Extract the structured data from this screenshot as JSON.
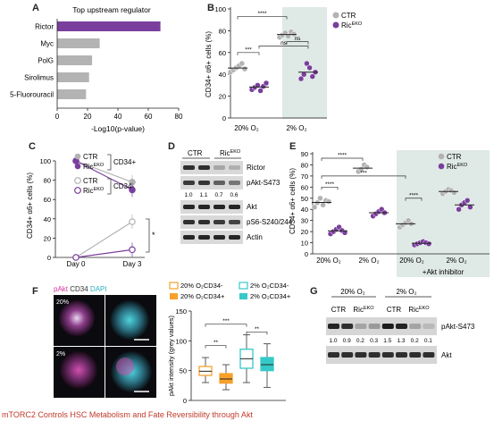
{
  "figure": {
    "caption": "mTORC2 Controls HSC Metabolism and Fate Reversibility through Akt",
    "colors": {
      "purple": "#7a3e9d",
      "grey": "#b3b3b3",
      "shade": "#dfe9e6",
      "orange": "#f7a12c",
      "teal": "#35c9c8"
    }
  },
  "panels": {
    "A": {
      "label": "A",
      "title": "Top upstream regulator",
      "xlabel": "-Log10(p-value)",
      "chart_data": {
        "type": "bar",
        "orientation": "horizontal",
        "categories": [
          "Rictor",
          "Myc",
          "PolG",
          "Sirolimus",
          "5-Fluorouracil"
        ],
        "values": [
          68,
          28,
          23,
          21,
          19
        ],
        "colors": [
          "#7a3e9d",
          "#b3b3b3",
          "#b3b3b3",
          "#b3b3b3",
          "#b3b3b3"
        ],
        "xlim": [
          0,
          80
        ],
        "xticks": [
          "0",
          "20",
          "40",
          "60",
          "80"
        ]
      }
    },
    "B": {
      "label": "B",
      "ylabel": "CD34+ α6+ cells (%)",
      "xcats": [
        "20% O₂",
        "2% O₂"
      ],
      "legend": [
        "CTR",
        "Ric"
      ],
      "legend_sup": "EKO",
      "sig": [
        "****",
        "***",
        "ns",
        "ns"
      ],
      "chart_data": {
        "type": "scatter",
        "ylim": [
          0,
          100
        ],
        "yticks": [
          "0",
          "20",
          "40",
          "60",
          "80",
          "100"
        ],
        "series": [
          {
            "name": "CTR 20%",
            "values": [
              42,
              44,
              46,
              48,
              50,
              45
            ]
          },
          {
            "name": "RicEKO 20%",
            "values": [
              26,
              28,
              30,
              25,
              29,
              32
            ]
          },
          {
            "name": "CTR 2%",
            "values": [
              74,
              76,
              78,
              75,
              79,
              77
            ]
          },
          {
            "name": "RicEKO 2%",
            "values": [
              36,
              40,
              50,
              46,
              38,
              42
            ]
          }
        ]
      }
    },
    "C": {
      "label": "C",
      "ylabel": "CD34+ α6+ cells (%)",
      "xcats": [
        "Day 0",
        "Day 3"
      ],
      "legend": [
        {
          "name": "CTR",
          "group": "CD34+"
        },
        {
          "name": "Ric",
          "group": ""
        },
        {
          "name": "CTR",
          "group": "CD34-"
        },
        {
          "name": "Ric",
          "group": ""
        }
      ],
      "legend_sup": "EKO",
      "sig": "*",
      "chart_data": {
        "type": "line",
        "ylim": [
          0,
          100
        ],
        "yticks": [
          "0",
          "20",
          "40",
          "60",
          "80",
          "100"
        ],
        "series": [
          {
            "name": "CTR CD34+",
            "values": [
              100,
              78
            ]
          },
          {
            "name": "RicEKO CD34+",
            "values": [
              100,
              70
            ]
          },
          {
            "name": "CTR CD34-",
            "values": [
              0,
              37
            ]
          },
          {
            "name": "RicEKO CD34-",
            "values": [
              0,
              8
            ]
          }
        ]
      }
    },
    "D": {
      "label": "D",
      "groups": [
        "CTR",
        "Ric"
      ],
      "group_sup": "EKO",
      "bands": [
        "Rictor",
        "pAkt-S473",
        "Akt",
        "pS6-S240/244",
        "Actin"
      ],
      "quant": [
        "1.0",
        "1.1",
        "0.7",
        "0.6"
      ]
    },
    "E": {
      "label": "E",
      "ylabel": "CD34+ α6+ cells (%)",
      "xcats": [
        "20% O₂",
        "2% O₂",
        "20% O₂",
        "2% O₂"
      ],
      "inhibitor": "+Akt inhibitor",
      "legend": [
        "CTR",
        "Ric"
      ],
      "legend_sup": "EKO",
      "sig": [
        "****",
        "****",
        "***",
        "****"
      ],
      "chart_data": {
        "type": "scatter",
        "ylim": [
          0,
          90
        ],
        "yticks": [
          "0",
          "10",
          "20",
          "30",
          "40",
          "50",
          "60",
          "70",
          "80",
          "90"
        ],
        "series": [
          {
            "name": "CTR 20%",
            "values": [
              42,
              46,
              50,
              44,
              48,
              47
            ]
          },
          {
            "name": "RicEKO 20%",
            "values": [
              18,
              20,
              22,
              24,
              21,
              19
            ]
          },
          {
            "name": "CTR 2%",
            "values": [
              74,
              76,
              80,
              78
            ]
          },
          {
            "name": "RicEKO 2%",
            "values": [
              34,
              36,
              38,
              40,
              37
            ]
          },
          {
            "name": "CTR 20% +Akt",
            "values": [
              24,
              26,
              28,
              30,
              27
            ]
          },
          {
            "name": "RicEKO 20% +Akt",
            "values": [
              8,
              9,
              10,
              11,
              10,
              9
            ]
          },
          {
            "name": "CTR 2% +Akt",
            "values": [
              54,
              56,
              58,
              57,
              55
            ]
          },
          {
            "name": "RicEKO 2% +Akt",
            "values": [
              40,
              44,
              46,
              48,
              42
            ]
          }
        ]
      }
    },
    "F": {
      "label": "F",
      "stain": [
        "pAkt",
        "CD34",
        "DAPI"
      ],
      "rows": [
        "20%",
        "2%"
      ],
      "ylabel": "pAkt intensity (grey values)",
      "legend": [
        "20% O₂CD34-",
        "2% O₂CD34-",
        "20% O₂CD34+",
        "2% O₂CD34+"
      ],
      "sig": [
        "***",
        "**",
        "**"
      ],
      "chart_data": {
        "type": "box",
        "ylim": [
          0,
          150
        ],
        "yticks": [
          "0",
          "50",
          "100",
          "150"
        ],
        "series": [
          {
            "name": "20% O2 CD34-",
            "q1": 42,
            "median": 49,
            "q3": 57,
            "min": 30,
            "max": 72
          },
          {
            "name": "20% O2 CD34+",
            "q1": 29,
            "median": 36,
            "q3": 45,
            "min": 18,
            "max": 60
          },
          {
            "name": "2% O2 CD34-",
            "q1": 54,
            "median": 70,
            "q3": 86,
            "min": 30,
            "max": 110
          },
          {
            "name": "2% O2 CD34+",
            "q1": 50,
            "median": 60,
            "q3": 72,
            "min": 22,
            "max": 95
          }
        ]
      }
    },
    "G": {
      "label": "G",
      "conditions": [
        "20% O₂",
        "2% O₂"
      ],
      "groups": [
        "CTR",
        "Ric",
        "CTR",
        "Ric"
      ],
      "group_sup": "EKO",
      "bands": [
        "pAkt-S473",
        "Akt"
      ],
      "quant": [
        "1.0",
        "0.9",
        "0.2",
        "0.3",
        "1.5",
        "1.3",
        "0.2",
        "0.1"
      ]
    }
  }
}
